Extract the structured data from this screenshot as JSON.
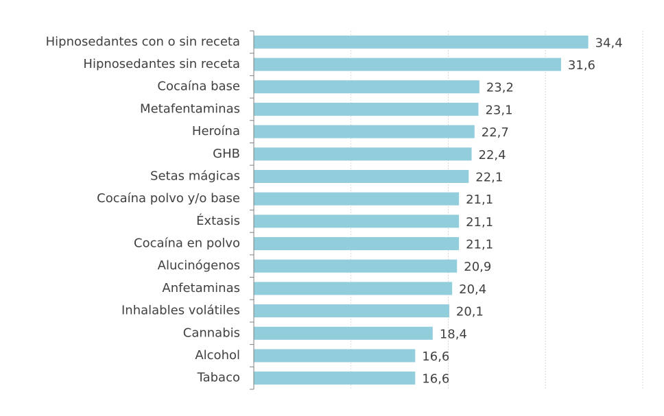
{
  "chart_data": {
    "type": "hbar",
    "categories": [
      "Hipnosedantes con o sin receta",
      "Hipnosedantes sin receta",
      "Cocaína base",
      "Metafentaminas",
      "Heroína",
      "GHB",
      "Setas mágicas",
      "Cocaína polvo y/o base",
      "Éxtasis",
      "Cocaína en polvo",
      "Alucinógenos",
      "Anfetaminas",
      "Inhalables volátiles",
      "Cannabis",
      "Alcohol",
      "Tabaco"
    ],
    "values": [
      34.4,
      31.6,
      23.2,
      23.1,
      22.7,
      22.4,
      22.1,
      21.1,
      21.1,
      21.1,
      20.9,
      20.4,
      20.1,
      18.4,
      16.6,
      16.6
    ],
    "value_labels": [
      "34,4",
      "31,6",
      "23,2",
      "23,1",
      "22,7",
      "22,4",
      "22,1",
      "21,1",
      "21,1",
      "21,1",
      "20,9",
      "20,4",
      "20,1",
      "18,4",
      "16,6",
      "16,6"
    ],
    "color": "#92cddc",
    "xlim": [
      0,
      40
    ],
    "xticks": [
      0,
      10,
      20,
      30,
      40
    ],
    "grid": true
  }
}
